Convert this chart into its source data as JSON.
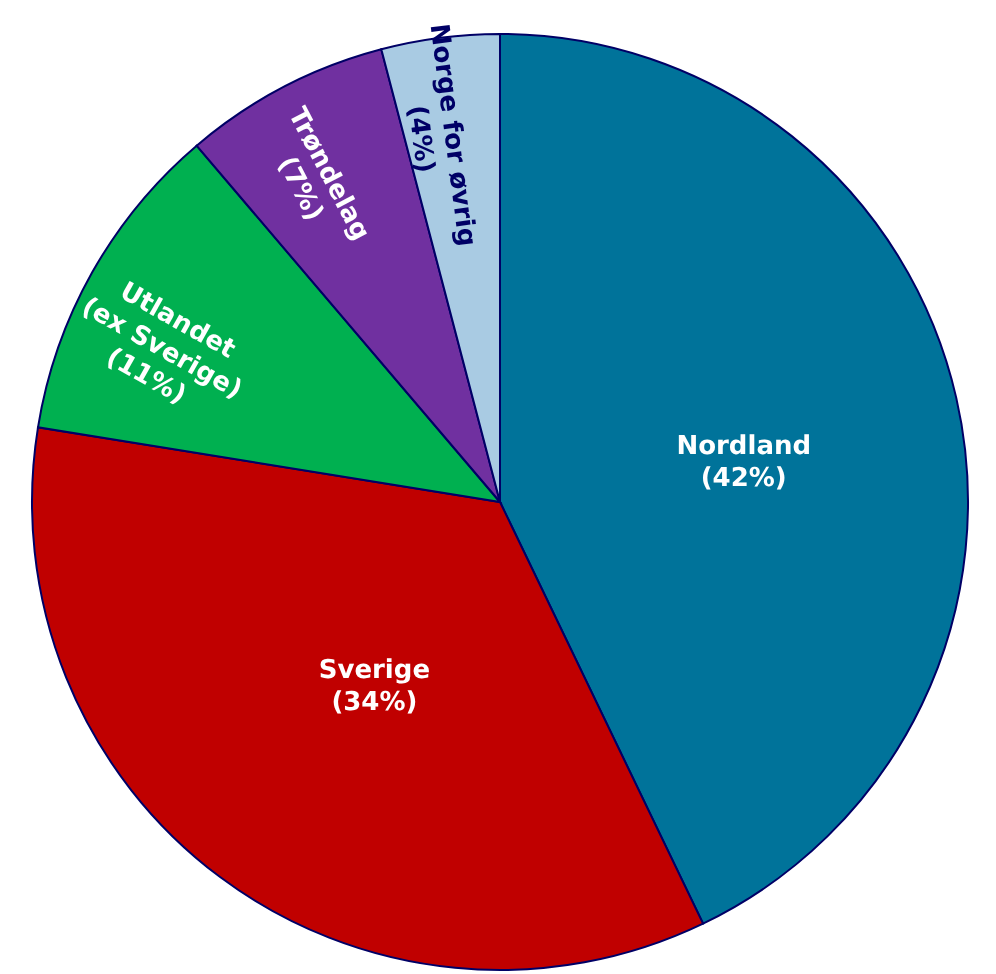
{
  "chart_data": {
    "type": "pie",
    "categories": [
      "Nordland",
      "Sverige",
      "Utlandet (ex Sverige)",
      "Trøndelag",
      "Norge for øvrig"
    ],
    "values": [
      42,
      34,
      11,
      7,
      4
    ],
    "value_labels": [
      "(42%)",
      "(34%)",
      "(11%)",
      "(7%)",
      "(4%)"
    ],
    "colors": [
      "#00739a",
      "#c00000",
      "#00b050",
      "#7030a0",
      "#a9cbe3"
    ]
  }
}
